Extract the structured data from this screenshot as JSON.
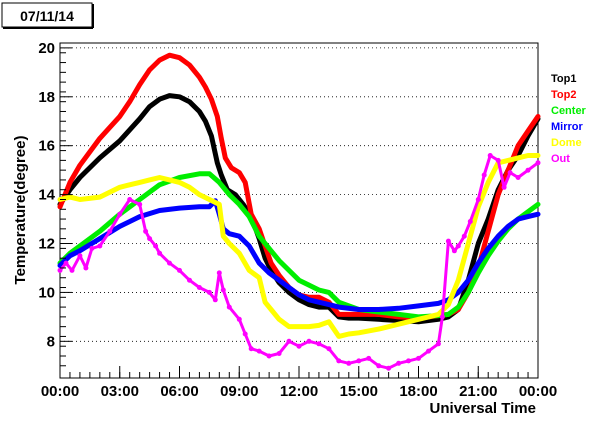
{
  "date_label": "07/11/14",
  "chart_data": {
    "type": "line",
    "title": "",
    "xlabel": "Universal Time",
    "ylabel": "Temperature(degree)",
    "xlim": [
      0,
      24
    ],
    "ylim": [
      6.5,
      20.2
    ],
    "x_tick_labels": [
      "00:00",
      "03:00",
      "06:00",
      "09:00",
      "12:00",
      "15:00",
      "18:00",
      "21:00",
      "00:00"
    ],
    "y_ticks": [
      8,
      10,
      12,
      14,
      16,
      18,
      20
    ],
    "grid": "horizontal-dotted",
    "legend_position": "right",
    "series": [
      {
        "name": "Top1",
        "color": "#000000",
        "x": [
          0,
          0.5,
          1,
          2,
          3,
          4,
          4.5,
          5,
          5.5,
          6,
          6.5,
          7,
          7.3,
          7.6,
          7.9,
          8.1,
          8.4,
          8.8,
          9.2,
          9.6,
          10,
          10.3,
          10.6,
          11,
          11.5,
          12,
          12.5,
          13,
          13.5,
          14,
          14.5,
          15,
          16,
          17,
          18,
          18.5,
          19,
          19.5,
          20,
          20.5,
          21,
          21.5,
          22,
          22.5,
          23,
          23.5,
          24
        ],
        "y": [
          13.6,
          14.2,
          14.7,
          15.5,
          16.2,
          17.1,
          17.6,
          17.9,
          18.05,
          18.0,
          17.8,
          17.4,
          17.0,
          16.4,
          15.3,
          14.8,
          14.2,
          14.0,
          13.6,
          13.1,
          12.2,
          11.4,
          10.9,
          10.4,
          10.0,
          9.7,
          9.5,
          9.4,
          9.4,
          9.0,
          8.95,
          8.95,
          8.9,
          8.85,
          8.8,
          8.85,
          8.9,
          9.0,
          9.3,
          10.5,
          12.0,
          13.0,
          14.2,
          15.0,
          15.6,
          16.4,
          17.1
        ]
      },
      {
        "name": "Top2",
        "color": "#ff0000",
        "x": [
          0,
          0.5,
          1,
          2,
          3,
          3.5,
          4,
          4.5,
          5,
          5.5,
          6,
          6.5,
          7,
          7.3,
          7.6,
          7.9,
          8.1,
          8.3,
          8.6,
          9,
          9.3,
          9.6,
          10,
          10.3,
          10.6,
          11,
          11.5,
          12,
          12.5,
          13,
          13.5,
          14,
          14.5,
          15,
          16,
          17,
          18,
          18.5,
          19,
          19.5,
          20,
          20.5,
          21,
          21.5,
          22,
          22.5,
          23,
          23.5,
          24
        ],
        "y": [
          13.5,
          14.5,
          15.2,
          16.3,
          17.2,
          17.8,
          18.5,
          19.1,
          19.5,
          19.7,
          19.6,
          19.3,
          18.8,
          18.4,
          17.9,
          17.2,
          16.3,
          15.5,
          15.1,
          14.9,
          14.5,
          13.2,
          12.6,
          11.9,
          11.2,
          10.7,
          10.2,
          9.9,
          9.8,
          9.8,
          9.6,
          9.1,
          9.1,
          9.1,
          9.1,
          9.0,
          8.95,
          9.0,
          9.05,
          9.1,
          9.3,
          10.0,
          11.0,
          12.5,
          14.0,
          15.0,
          16.0,
          16.6,
          17.2
        ]
      },
      {
        "name": "Center",
        "color": "#00ee00",
        "x": [
          0,
          0.5,
          1,
          2,
          3,
          4,
          5,
          6,
          7,
          7.5,
          8,
          8.5,
          9,
          9.5,
          10,
          10.5,
          11,
          11.5,
          12,
          12.5,
          13,
          13.5,
          14,
          15,
          16,
          17,
          18,
          19,
          19.5,
          20,
          20.5,
          21,
          21.5,
          22,
          22.5,
          23,
          23.5,
          24
        ],
        "y": [
          11.2,
          11.6,
          11.9,
          12.5,
          13.2,
          13.8,
          14.4,
          14.7,
          14.85,
          14.85,
          14.5,
          14.0,
          13.6,
          13.1,
          12.3,
          11.8,
          11.3,
          10.9,
          10.5,
          10.3,
          10.1,
          10.0,
          9.6,
          9.3,
          9.2,
          9.1,
          9.0,
          9.05,
          9.1,
          9.4,
          10.0,
          10.8,
          11.5,
          12.1,
          12.6,
          13.0,
          13.3,
          13.6
        ]
      },
      {
        "name": "Mirror",
        "color": "#0000ff",
        "x": [
          0,
          0.5,
          1,
          2,
          3,
          4,
          5,
          6,
          7,
          7.5,
          7.8,
          8,
          8.2,
          8.5,
          9,
          9.5,
          10,
          10.5,
          11,
          11.5,
          12,
          12.5,
          13,
          13.5,
          14,
          15,
          16,
          17,
          18,
          19,
          19.5,
          20,
          20.5,
          21,
          21.5,
          22,
          22.5,
          23,
          23.5,
          24
        ],
        "y": [
          11.1,
          11.5,
          11.7,
          12.2,
          12.7,
          13.1,
          13.35,
          13.45,
          13.5,
          13.5,
          13.75,
          13.2,
          12.6,
          12.4,
          12.3,
          11.9,
          11.2,
          10.8,
          10.5,
          10.2,
          9.9,
          9.7,
          9.6,
          9.5,
          9.4,
          9.3,
          9.3,
          9.35,
          9.45,
          9.55,
          9.7,
          10.0,
          10.5,
          11.2,
          11.8,
          12.3,
          12.7,
          13.0,
          13.1,
          13.2
        ]
      },
      {
        "name": "Dome",
        "color": "#ffff00",
        "x": [
          0,
          0.5,
          1,
          2,
          3,
          3.5,
          4,
          4.5,
          5,
          5.5,
          6,
          6.5,
          7,
          7.5,
          8,
          8.2,
          8.5,
          9,
          9.5,
          10,
          10.3,
          10.6,
          11,
          11.5,
          12,
          12.5,
          13,
          13.5,
          14,
          14.5,
          15,
          16,
          17,
          18,
          18.5,
          19,
          19.5,
          20,
          20.5,
          21,
          21.5,
          22,
          22.5,
          23,
          23.5,
          24
        ],
        "y": [
          13.8,
          13.9,
          13.8,
          13.9,
          14.3,
          14.4,
          14.5,
          14.6,
          14.7,
          14.6,
          14.5,
          14.3,
          14.0,
          13.8,
          13.6,
          12.3,
          12.0,
          11.6,
          10.9,
          10.6,
          9.6,
          9.3,
          8.9,
          8.6,
          8.6,
          8.6,
          8.65,
          8.8,
          8.2,
          8.3,
          8.35,
          8.5,
          8.7,
          8.9,
          9.0,
          9.1,
          9.5,
          10.5,
          12.0,
          13.5,
          14.5,
          15.3,
          15.4,
          15.5,
          15.6,
          15.6
        ]
      },
      {
        "name": "Out",
        "color": "#ff00ff",
        "x": [
          0,
          0.3,
          0.6,
          1,
          1.3,
          1.6,
          2,
          2.5,
          3,
          3.5,
          4,
          4.3,
          4.5,
          4.8,
          5,
          5.5,
          6,
          6.5,
          7,
          7.5,
          7.8,
          8,
          8.2,
          8.5,
          9,
          9.3,
          9.6,
          10,
          10.5,
          11,
          11.5,
          12,
          12.5,
          13,
          13.5,
          14,
          14.5,
          15,
          15.5,
          16,
          16.5,
          17,
          17.5,
          18,
          18.5,
          19,
          19.2,
          19.5,
          19.8,
          20,
          20.3,
          20.6,
          21,
          21.3,
          21.6,
          22,
          22.3,
          22.6,
          23,
          23.5,
          24
        ],
        "y": [
          10.9,
          11.2,
          10.9,
          11.5,
          11.0,
          11.8,
          11.9,
          12.5,
          13.2,
          13.8,
          13.6,
          12.5,
          12.2,
          11.9,
          11.6,
          11.2,
          10.9,
          10.5,
          10.2,
          10.0,
          9.7,
          10.8,
          10.1,
          9.4,
          8.9,
          8.3,
          7.7,
          7.6,
          7.4,
          7.5,
          8.0,
          7.8,
          8.0,
          7.9,
          7.7,
          7.2,
          7.1,
          7.2,
          7.3,
          7.0,
          6.9,
          7.1,
          7.2,
          7.3,
          7.6,
          7.9,
          9.0,
          12.1,
          11.7,
          11.9,
          12.3,
          12.9,
          13.8,
          14.8,
          15.6,
          15.4,
          14.3,
          14.9,
          14.7,
          15.0,
          15.3
        ]
      }
    ]
  }
}
